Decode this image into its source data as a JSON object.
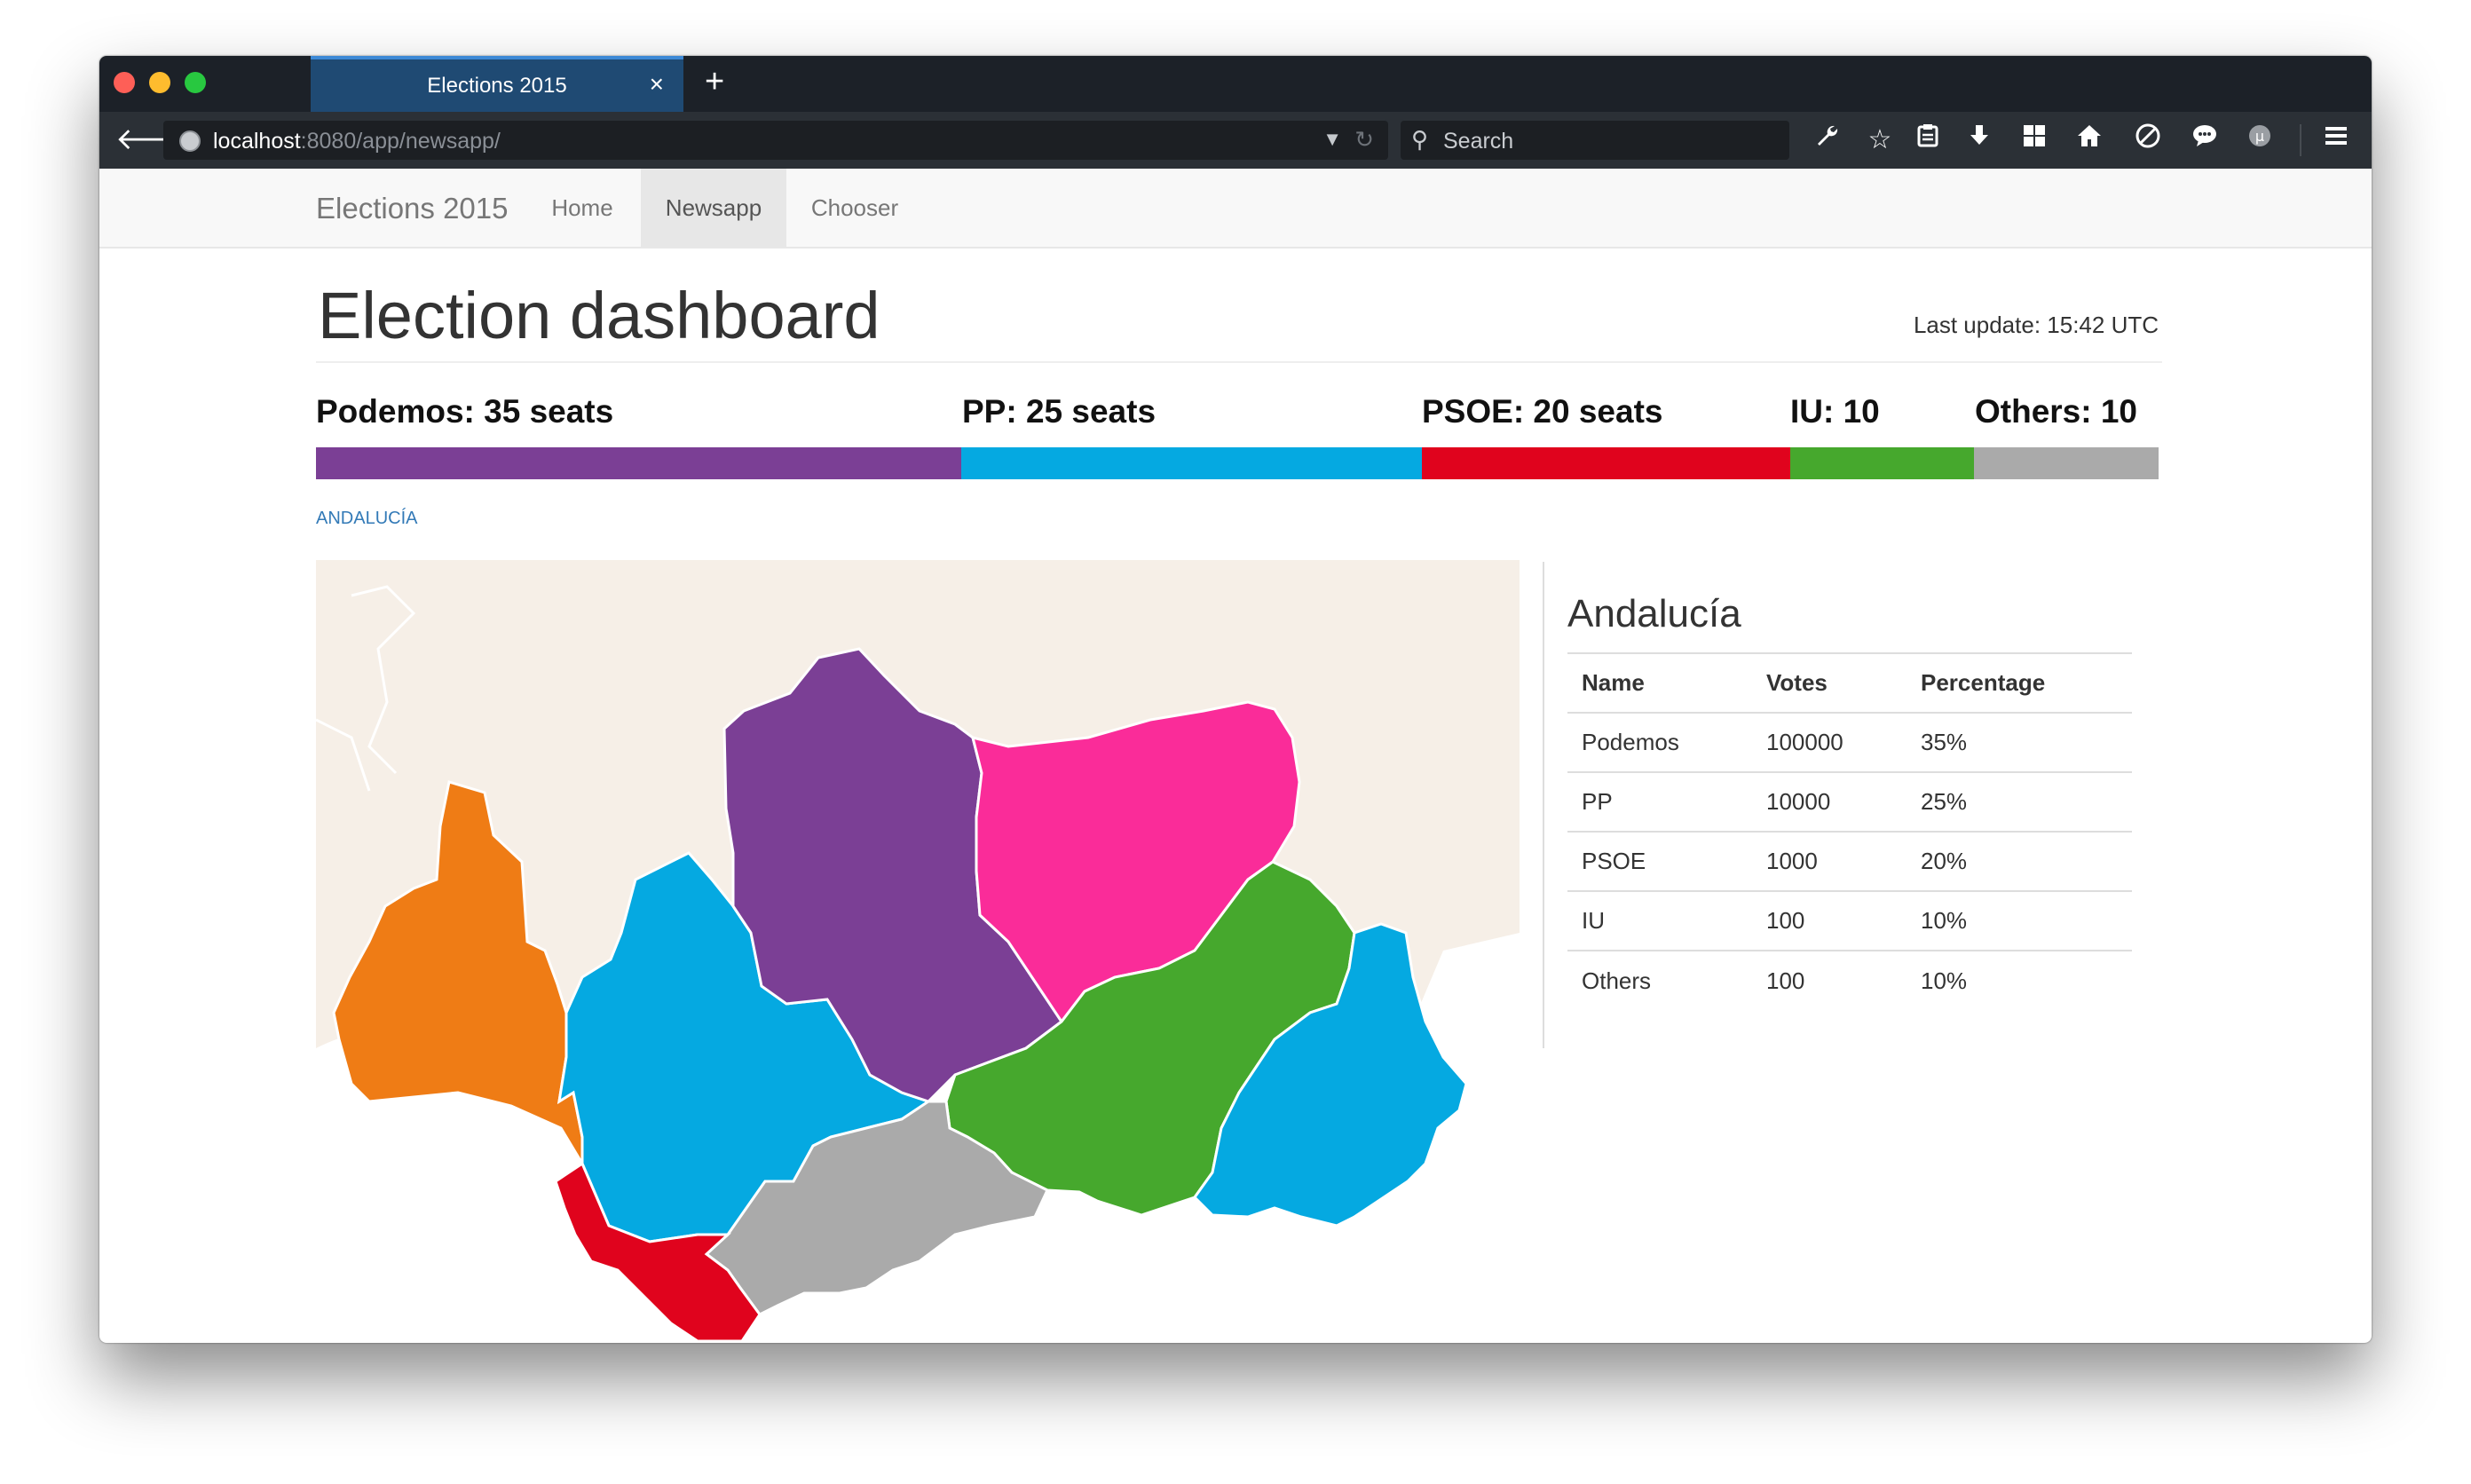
{
  "browser": {
    "tab_title": "Elections 2015",
    "tab_close": "×",
    "new_tab": "+",
    "url_host": "localhost",
    "url_rest": ":8080/app/newsapp/",
    "search_placeholder": "Search"
  },
  "navbar": {
    "brand": "Elections 2015",
    "items": [
      {
        "label": "Home",
        "active": false
      },
      {
        "label": "Newsapp",
        "active": true
      },
      {
        "label": "Chooser",
        "active": false
      }
    ]
  },
  "dashboard": {
    "title": "Election dashboard",
    "last_update": "Last update: 15:42 UTC",
    "breadcrumb": "ANDALUCÍA"
  },
  "seats": [
    {
      "label": "Podemos: 35 seats",
      "party": "Podemos",
      "seats": 35,
      "color": "#7b3f95"
    },
    {
      "label": "PP: 25 seats",
      "party": "PP",
      "seats": 25,
      "color": "#05a9e1"
    },
    {
      "label": "PSOE: 20 seats",
      "party": "PSOE",
      "seats": 20,
      "color": "#e0031d"
    },
    {
      "label": "IU: 10",
      "party": "IU",
      "seats": 10,
      "color": "#46a82d"
    },
    {
      "label": "Others: 10",
      "party": "Others",
      "seats": 10,
      "color": "#aaaaaa"
    }
  ],
  "region": {
    "name": "Andalucía",
    "columns": [
      "Name",
      "Votes",
      "Percentage"
    ],
    "rows": [
      [
        "Podemos",
        "100000",
        "35%"
      ],
      [
        "PP",
        "10000",
        "25%"
      ],
      [
        "PSOE",
        "1000",
        "20%"
      ],
      [
        "IU",
        "100",
        "10%"
      ],
      [
        "Others",
        "100",
        "10%"
      ]
    ]
  },
  "map": {
    "provinces": [
      {
        "name": "huelva",
        "color": "#ef7c15"
      },
      {
        "name": "sevilla",
        "color": "#05a9e1"
      },
      {
        "name": "cordoba",
        "color": "#7b3f95"
      },
      {
        "name": "jaen",
        "color": "#fa2c99"
      },
      {
        "name": "granada",
        "color": "#46a82d"
      },
      {
        "name": "almeria",
        "color": "#05a9e1"
      },
      {
        "name": "malaga",
        "color": "#aaaaaa"
      },
      {
        "name": "cadiz",
        "color": "#e0031d"
      }
    ],
    "background_color": "#f6efe7"
  }
}
